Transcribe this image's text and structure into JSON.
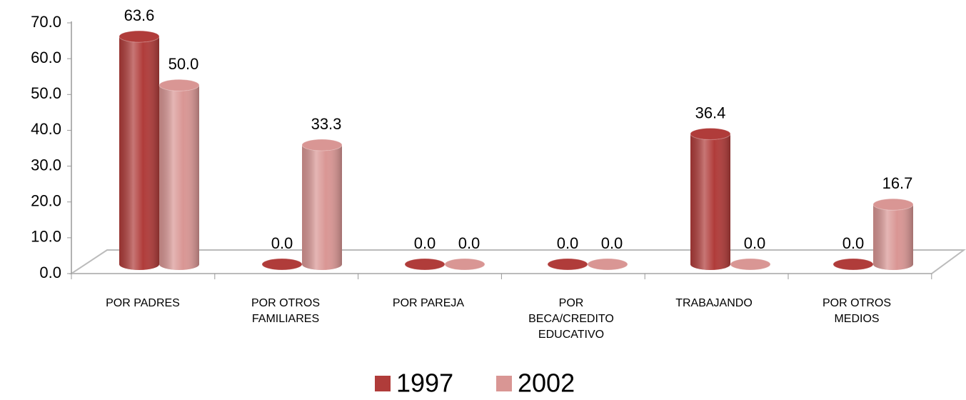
{
  "chart_data": {
    "type": "bar",
    "categories": [
      "POR PADRES",
      "POR OTROS FAMILIARES",
      "POR PAREJA",
      "POR BECA/CREDITO EDUCATIVO",
      "TRABAJANDO",
      "POR OTROS MEDIOS"
    ],
    "series": [
      {
        "name": "1997",
        "color": "#b03c3a",
        "values": [
          63.6,
          0.0,
          0.0,
          0.0,
          36.4,
          0.0
        ],
        "value_labels": [
          "63.6",
          "0.0",
          "0.0",
          "0.0",
          "36.4",
          "0.0"
        ]
      },
      {
        "name": "2002",
        "color": "#d99694",
        "values": [
          50.0,
          33.3,
          0.0,
          0.0,
          0.0,
          16.7
        ],
        "value_labels": [
          "50.0",
          "33.3",
          "0.0",
          "0.0",
          "0.0",
          "16.7"
        ]
      }
    ],
    "ylim": [
      0,
      70
    ],
    "yticks": [
      {
        "value": 0,
        "label": "0.0"
      },
      {
        "value": 10,
        "label": "10.0"
      },
      {
        "value": 20,
        "label": "20.0"
      },
      {
        "value": 30,
        "label": "30.0"
      },
      {
        "value": 40,
        "label": "40.0"
      },
      {
        "value": 50,
        "label": "50.0"
      },
      {
        "value": 60,
        "label": "60.0"
      },
      {
        "value": 70,
        "label": "70.0"
      }
    ],
    "legend": "bottom"
  }
}
